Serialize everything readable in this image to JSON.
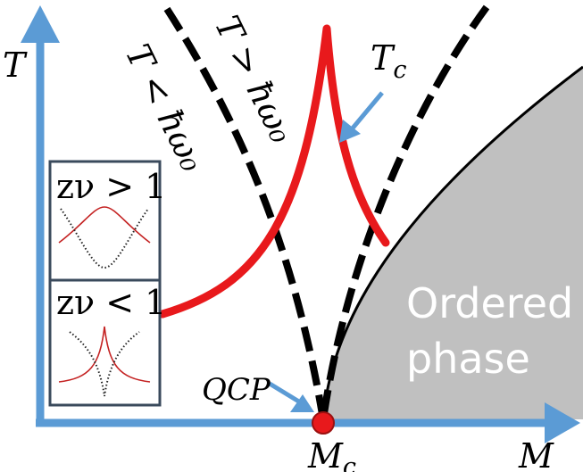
{
  "axes": {
    "y_label": "T",
    "x_label": "M"
  },
  "labels": {
    "t_less": "T < ħω₀",
    "t_greater": "T > ħω₀",
    "tc": "T",
    "tc_sub": "c",
    "qcp": "QCP",
    "mc": "M",
    "mc_sub": "c",
    "ordered_line1": "Ordered",
    "ordered_line2": "phase"
  },
  "insets": {
    "top": "zν > 1",
    "bottom": "zν < 1"
  },
  "colors": {
    "axis": "#5b9bd5",
    "critical": "#e8191c",
    "crossover": "#000000",
    "ordered_fill": "#c0c0c0",
    "inset_border": "#3a4a5c"
  }
}
